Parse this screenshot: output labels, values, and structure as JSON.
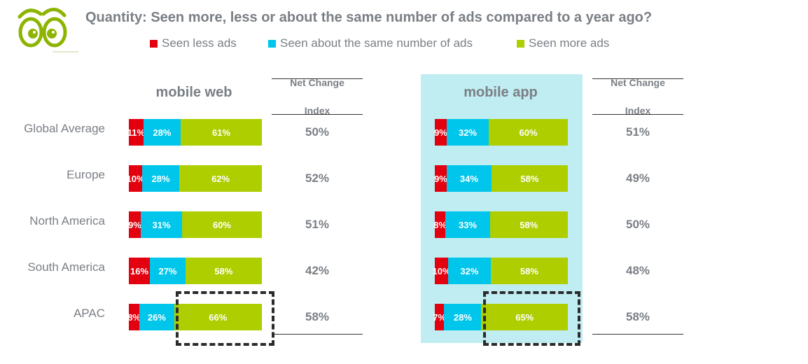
{
  "title": "Quantity: Seen more, less or about the same number of ads compared to a year ago?",
  "logo": "eyes-logo",
  "colors": {
    "less": "#e3000f",
    "same": "#00c6eb",
    "more": "#aece00",
    "highlight_panel": "#c0edf2",
    "text": "#7a7f85"
  },
  "legend": [
    {
      "label": "Seen less ads",
      "color": "#e3000f"
    },
    {
      "label": "Seen about the same number of ads",
      "color": "#00c6eb"
    },
    {
      "label": "Seen more ads",
      "color": "#aece00"
    }
  ],
  "net_change_header": "Net Change Index",
  "net_change_header_lines": [
    "Net Change",
    "Index"
  ],
  "chart_data": [
    {
      "type": "bar",
      "stacked": true,
      "orientation": "horizontal",
      "title": "mobile web",
      "categories": [
        "Global Average",
        "Europe",
        "North America",
        "South America",
        "APAC"
      ],
      "series": [
        {
          "name": "Seen less ads",
          "values": [
            11,
            10,
            9,
            16,
            8
          ],
          "labels": [
            "11%",
            "10%",
            "9%",
            "16%",
            "8%"
          ]
        },
        {
          "name": "Seen about the same number of ads",
          "values": [
            28,
            28,
            31,
            27,
            26
          ],
          "labels": [
            "28%",
            "28%",
            "31%",
            "27%",
            "26%"
          ]
        },
        {
          "name": "Seen more ads",
          "values": [
            61,
            62,
            60,
            58,
            66
          ],
          "labels": [
            "61%",
            "62%",
            "60%",
            "58%",
            "66%"
          ]
        }
      ],
      "net_change_index": [
        "50%",
        "52%",
        "51%",
        "42%",
        "58%"
      ],
      "highlighted": {
        "category": "APAC",
        "series": "Seen more ads"
      },
      "xlim": [
        0,
        100
      ]
    },
    {
      "type": "bar",
      "stacked": true,
      "orientation": "horizontal",
      "title": "mobile app",
      "categories": [
        "Global Average",
        "Europe",
        "North America",
        "South America",
        "APAC"
      ],
      "series": [
        {
          "name": "Seen less ads",
          "values": [
            9,
            9,
            8,
            10,
            7
          ],
          "labels": [
            "9%",
            "9%",
            "8%",
            "10%",
            "7%"
          ]
        },
        {
          "name": "Seen about the same number of ads",
          "values": [
            32,
            34,
            33,
            32,
            28
          ],
          "labels": [
            "32%",
            "34%",
            "33%",
            "32%",
            "28%"
          ]
        },
        {
          "name": "Seen more ads",
          "values": [
            60,
            58,
            58,
            58,
            65
          ],
          "labels": [
            "60%",
            "58%",
            "58%",
            "58%",
            "65%"
          ]
        }
      ],
      "net_change_index": [
        "51%",
        "49%",
        "50%",
        "48%",
        "58%"
      ],
      "highlighted": {
        "category": "APAC",
        "series": "Seen more ads"
      },
      "xlim": [
        0,
        100
      ]
    }
  ]
}
